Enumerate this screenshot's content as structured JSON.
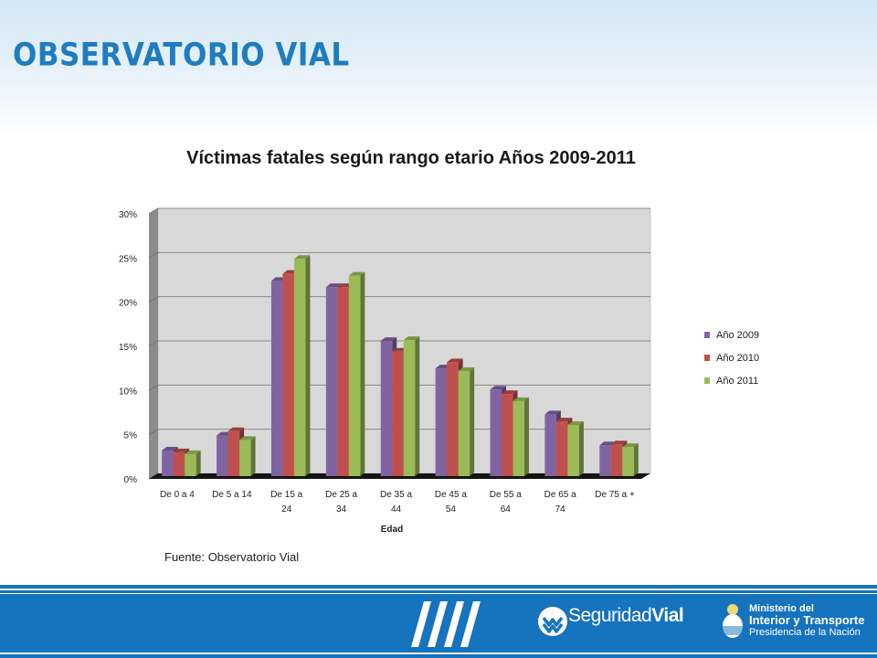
{
  "header": {
    "brand": "OBSERVATORIO VIAL"
  },
  "chart_data": {
    "type": "bar",
    "title": "Víctimas fatales según rango etario Años 2009-2011",
    "xlabel": "Edad",
    "ylabel": "",
    "ylim": [
      0,
      0.3
    ],
    "yticks": [
      "0%",
      "5%",
      "10%",
      "15%",
      "20%",
      "25%",
      "30%"
    ],
    "categories": [
      [
        "De 0 a 4"
      ],
      [
        "De 5 a 14"
      ],
      [
        "De 15 a",
        "24"
      ],
      [
        "De 25 a",
        "34"
      ],
      [
        "De 35 a",
        "44"
      ],
      [
        "De 45 a",
        "54"
      ],
      [
        "De 55 a",
        "64"
      ],
      [
        "De 65 a",
        "74"
      ],
      [
        "De 75 a +"
      ]
    ],
    "series": [
      {
        "name": "Año 2009",
        "color": "#8064a2",
        "values": [
          0.03,
          0.047,
          0.222,
          0.215,
          0.154,
          0.123,
          0.099,
          0.071,
          0.036
        ]
      },
      {
        "name": "Año 2010",
        "color": "#c0504d",
        "values": [
          0.028,
          0.052,
          0.23,
          0.215,
          0.142,
          0.13,
          0.094,
          0.063,
          0.037
        ]
      },
      {
        "name": "Año 2011",
        "color": "#9bbb59",
        "values": [
          0.026,
          0.042,
          0.247,
          0.228,
          0.155,
          0.12,
          0.086,
          0.059,
          0.034
        ]
      }
    ],
    "grid": true,
    "legend": "right"
  },
  "source": "Fuente: Observatorio Vial",
  "footer": {
    "logo_word1": "Seguridad",
    "logo_word2": "Vial",
    "ministry_line1": "Ministerio del",
    "ministry_line2": "Interior y Transporte",
    "ministry_line3": "Presidencia de la Nación"
  }
}
